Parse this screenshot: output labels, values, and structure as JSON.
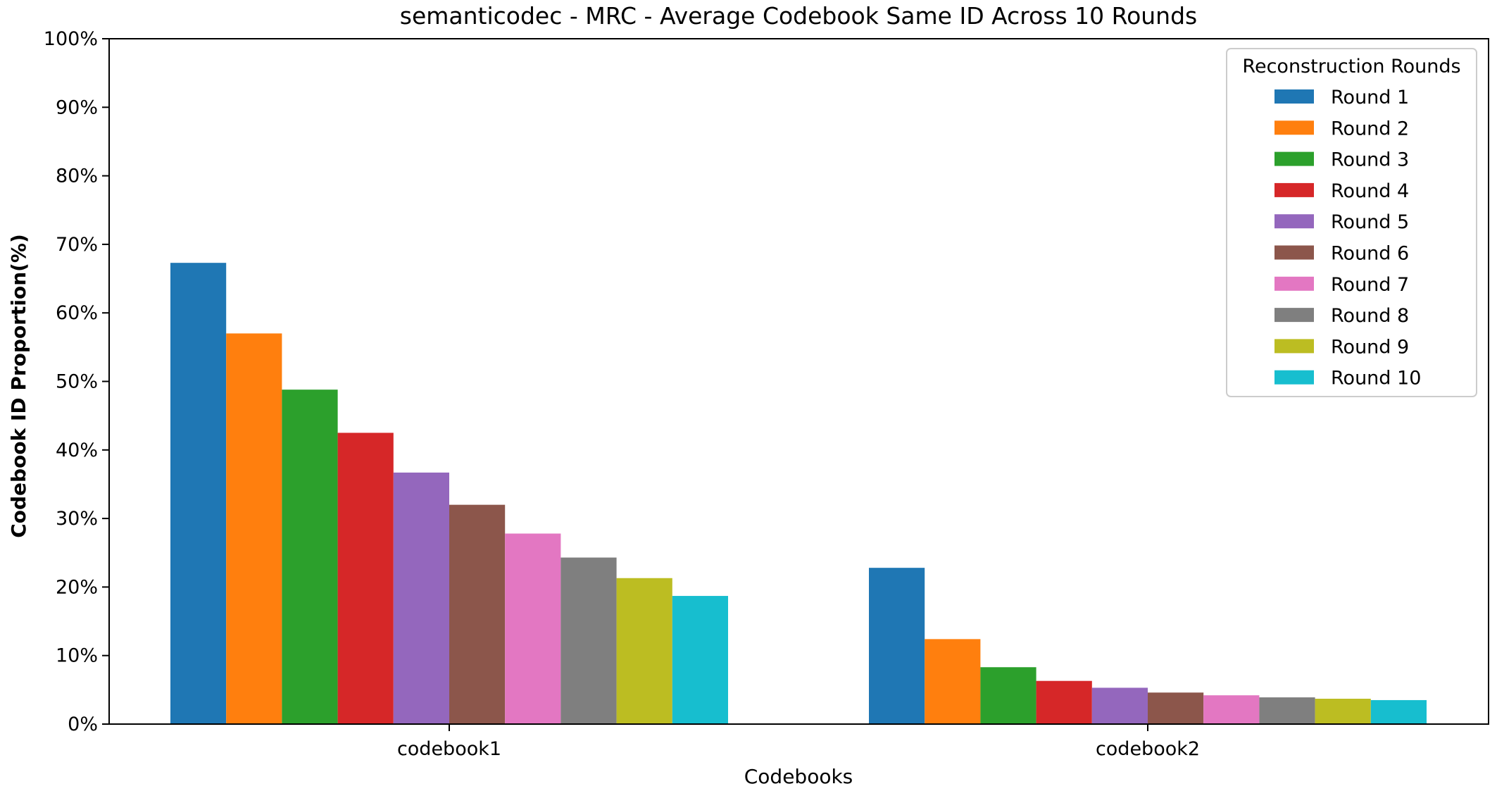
{
  "chart_data": {
    "type": "bar",
    "title": "semanticodec - MRC - Average Codebook Same ID Across 10 Rounds",
    "xlabel": "Codebooks",
    "ylabel": "Codebook ID Proportion(%)",
    "categories": [
      "codebook1",
      "codebook2"
    ],
    "ylim": [
      0,
      100
    ],
    "yticks": [
      0,
      10,
      20,
      30,
      40,
      50,
      60,
      70,
      80,
      90,
      100
    ],
    "ytick_labels": [
      "0%",
      "10%",
      "20%",
      "30%",
      "40%",
      "50%",
      "60%",
      "70%",
      "80%",
      "90%",
      "100%"
    ],
    "grid": false,
    "legend": {
      "title": "Reconstruction Rounds",
      "placement": "top-right"
    },
    "series": [
      {
        "name": "Round 1",
        "color": "#1f77b4",
        "values": [
          67.3,
          22.8
        ]
      },
      {
        "name": "Round 2",
        "color": "#ff7f0e",
        "values": [
          57.0,
          12.4
        ]
      },
      {
        "name": "Round 3",
        "color": "#2ca02c",
        "values": [
          48.8,
          8.3
        ]
      },
      {
        "name": "Round 4",
        "color": "#d62728",
        "values": [
          42.5,
          6.3
        ]
      },
      {
        "name": "Round 5",
        "color": "#9467bd",
        "values": [
          36.7,
          5.3
        ]
      },
      {
        "name": "Round 6",
        "color": "#8c564b",
        "values": [
          32.0,
          4.6
        ]
      },
      {
        "name": "Round 7",
        "color": "#e377c2",
        "values": [
          27.8,
          4.2
        ]
      },
      {
        "name": "Round 8",
        "color": "#7f7f7f",
        "values": [
          24.3,
          3.9
        ]
      },
      {
        "name": "Round 9",
        "color": "#bcbd22",
        "values": [
          21.3,
          3.7
        ]
      },
      {
        "name": "Round 10",
        "color": "#17becf",
        "values": [
          18.7,
          3.5
        ]
      }
    ]
  }
}
